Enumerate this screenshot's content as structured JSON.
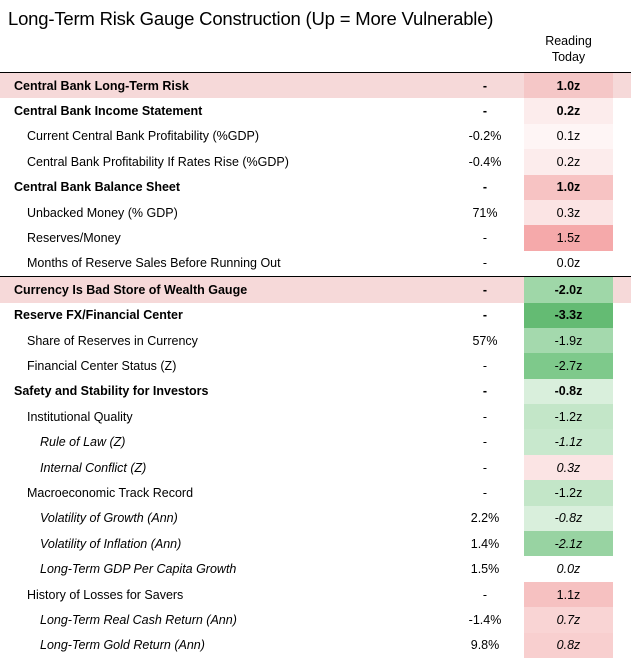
{
  "title": "Long-Term Risk Gauge Construction (Up = More Vulnerable)",
  "column_header_line1": "Reading",
  "column_header_line2": "Today",
  "rows": [
    {
      "label": "Central Bank Long-Term Risk",
      "mid": "-",
      "value": "1.0z",
      "bg": "#f5c7c7",
      "level": 0,
      "bold": true,
      "italic": false,
      "band": true,
      "topline": true
    },
    {
      "label": "Central Bank Income Statement",
      "mid": "-",
      "value": "0.2z",
      "bg": "#fcecec",
      "level": 0,
      "bold": true,
      "italic": false,
      "band": false,
      "topline": false
    },
    {
      "label": "Current Central Bank Profitability (%GDP)",
      "mid": "-0.2%",
      "value": "0.1z",
      "bg": "#fef5f5",
      "level": 1,
      "bold": false,
      "italic": false,
      "band": false,
      "topline": false
    },
    {
      "label": "Central Bank Profitability If Rates Rise (%GDP)",
      "mid": "-0.4%",
      "value": "0.2z",
      "bg": "#fcecec",
      "level": 1,
      "bold": false,
      "italic": false,
      "band": false,
      "topline": false
    },
    {
      "label": "Central Bank Balance Sheet",
      "mid": "-",
      "value": "1.0z",
      "bg": "#f7c3c3",
      "level": 0,
      "bold": true,
      "italic": false,
      "band": false,
      "topline": false
    },
    {
      "label": "Unbacked Money (% GDP)",
      "mid": "71%",
      "value": "0.3z",
      "bg": "#fbe4e4",
      "level": 1,
      "bold": false,
      "italic": false,
      "band": false,
      "topline": false
    },
    {
      "label": "Reserves/Money",
      "mid": "-",
      "value": "1.5z",
      "bg": "#f5a9aa",
      "level": 1,
      "bold": false,
      "italic": false,
      "band": false,
      "topline": false
    },
    {
      "label": "Months of Reserve Sales Before Running Out",
      "mid": "-",
      "value": "0.0z",
      "bg": "#ffffff",
      "level": 1,
      "bold": false,
      "italic": false,
      "band": false,
      "topline": false
    },
    {
      "label": "Currency Is Bad Store of Wealth Gauge",
      "mid": "-",
      "value": "-2.0z",
      "bg": "#9fd7a8",
      "level": 0,
      "bold": true,
      "italic": false,
      "band": true,
      "topline": true
    },
    {
      "label": "Reserve FX/Financial Center",
      "mid": "-",
      "value": "-3.3z",
      "bg": "#64bb73",
      "level": 0,
      "bold": true,
      "italic": false,
      "band": false,
      "topline": false
    },
    {
      "label": "Share of Reserves in Currency",
      "mid": "57%",
      "value": "-1.9z",
      "bg": "#a4d9ad",
      "level": 1,
      "bold": false,
      "italic": false,
      "band": false,
      "topline": false
    },
    {
      "label": "Financial Center Status (Z)",
      "mid": "-",
      "value": "-2.7z",
      "bg": "#7ec98b",
      "level": 1,
      "bold": false,
      "italic": false,
      "band": false,
      "topline": false
    },
    {
      "label": "Safety and Stability for Investors",
      "mid": "-",
      "value": "-0.8z",
      "bg": "#d9efdc",
      "level": 0,
      "bold": true,
      "italic": false,
      "band": false,
      "topline": false
    },
    {
      "label": "Institutional Quality",
      "mid": "-",
      "value": "-1.2z",
      "bg": "#c3e6c8",
      "level": 1,
      "bold": false,
      "italic": false,
      "band": false,
      "topline": false
    },
    {
      "label": "Rule of Law (Z)",
      "mid": "-",
      "value": "-1.1z",
      "bg": "#c8e8cd",
      "level": 2,
      "bold": false,
      "italic": true,
      "band": false,
      "topline": false
    },
    {
      "label": "Internal Conflict (Z)",
      "mid": "-",
      "value": "0.3z",
      "bg": "#fbe4e4",
      "level": 2,
      "bold": false,
      "italic": true,
      "band": false,
      "topline": false
    },
    {
      "label": "Macroeconomic Track Record",
      "mid": "-",
      "value": "-1.2z",
      "bg": "#c3e6c8",
      "level": 1,
      "bold": false,
      "italic": false,
      "band": false,
      "topline": false
    },
    {
      "label": "Volatility of Growth (Ann)",
      "mid": "2.2%",
      "value": "-0.8z",
      "bg": "#d9efdc",
      "level": 2,
      "bold": false,
      "italic": true,
      "band": false,
      "topline": false
    },
    {
      "label": "Volatility of Inflation (Ann)",
      "mid": "1.4%",
      "value": "-2.1z",
      "bg": "#98d3a2",
      "level": 2,
      "bold": false,
      "italic": true,
      "band": false,
      "topline": false
    },
    {
      "label": "Long-Term GDP Per Capita Growth",
      "mid": "1.5%",
      "value": "0.0z",
      "bg": "#ffffff",
      "level": 2,
      "bold": false,
      "italic": true,
      "band": false,
      "topline": false
    },
    {
      "label": "History of Losses for Savers",
      "mid": "-",
      "value": "1.1z",
      "bg": "#f6c1c1",
      "level": 1,
      "bold": false,
      "italic": false,
      "band": false,
      "topline": false
    },
    {
      "label": "Long-Term Real Cash Return (Ann)",
      "mid": "-1.4%",
      "value": "0.7z",
      "bg": "#f9d4d4",
      "level": 2,
      "bold": false,
      "italic": true,
      "band": false,
      "topline": false
    },
    {
      "label": "Long-Term Gold Return (Ann)",
      "mid": "9.8%",
      "value": "0.8z",
      "bg": "#f8cfcf",
      "level": 2,
      "bold": false,
      "italic": true,
      "band": false,
      "topline": false
    }
  ]
}
